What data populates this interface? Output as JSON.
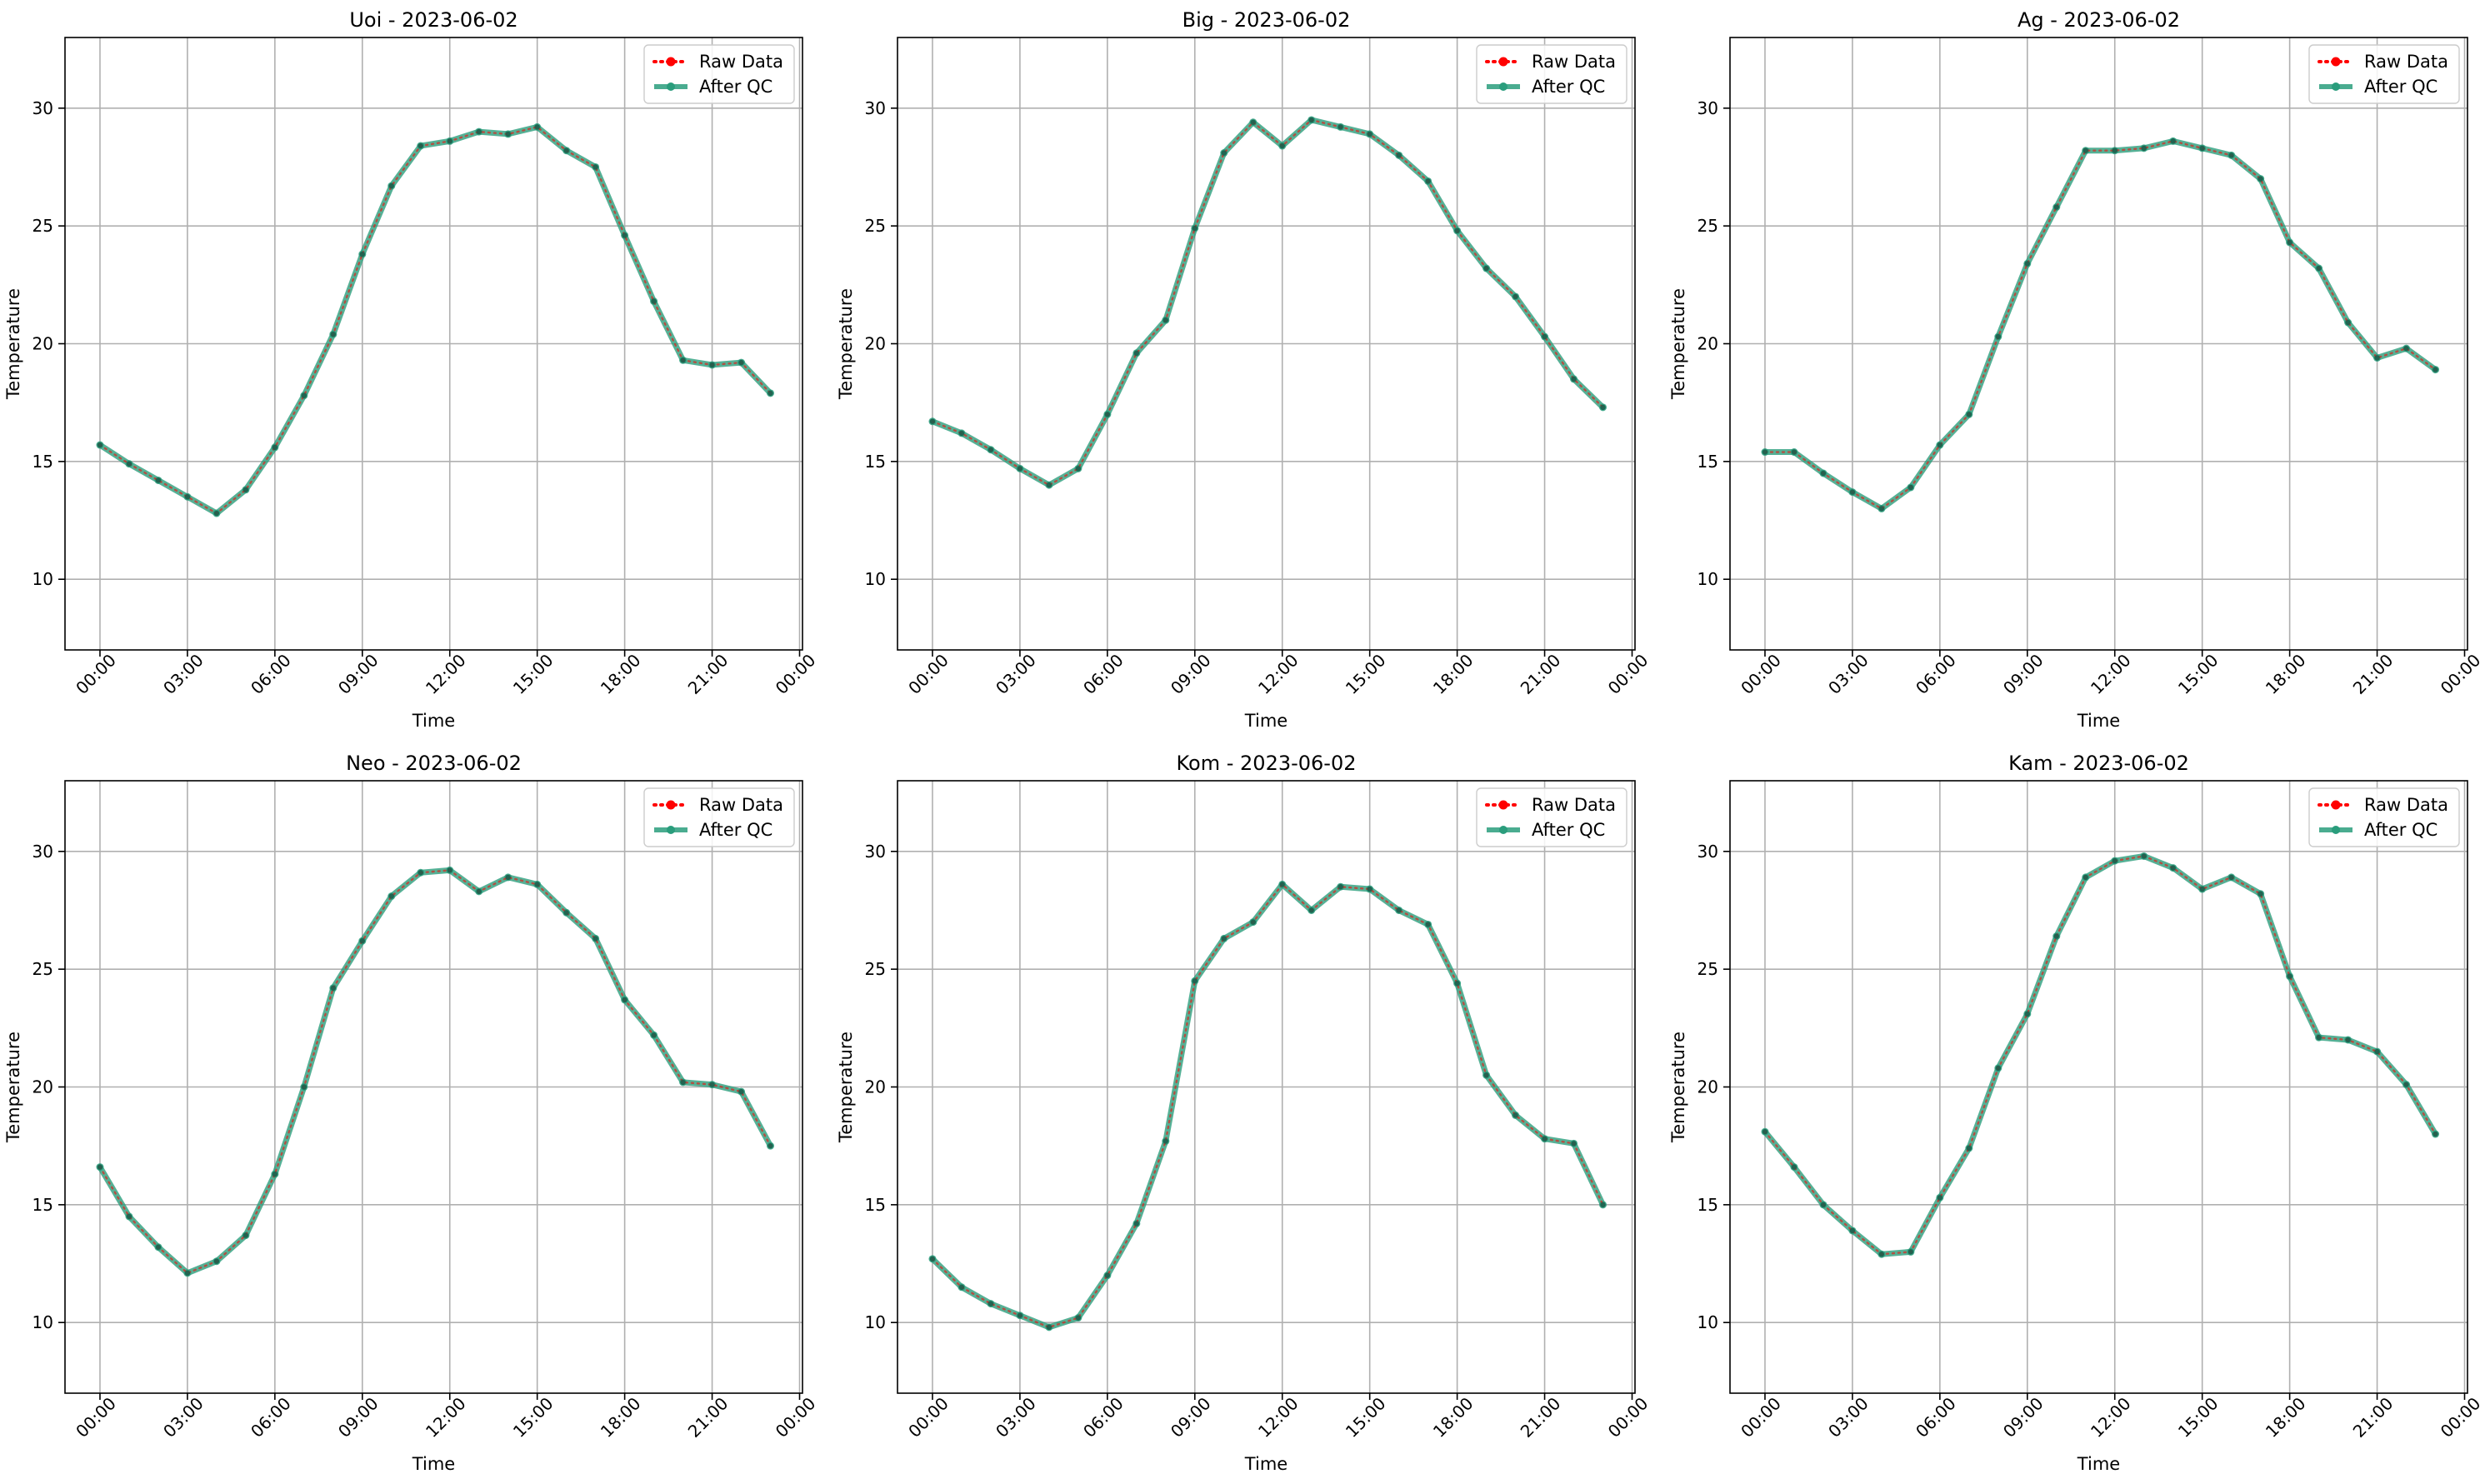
{
  "figure": {
    "background": "#ffffff"
  },
  "style": {
    "raw_color": "#ff0000",
    "qc_color": "#2a9d7c",
    "grid_color": "#b0b0b0"
  },
  "chart_data": [
    {
      "type": "line",
      "title": "Uoi - 2023-06-02",
      "xlabel": "Time",
      "ylabel": "Temperature",
      "x": [
        "00:00",
        "01:00",
        "02:00",
        "03:00",
        "04:00",
        "05:00",
        "06:00",
        "07:00",
        "08:00",
        "09:00",
        "10:00",
        "11:00",
        "12:00",
        "13:00",
        "14:00",
        "15:00",
        "16:00",
        "17:00",
        "18:00",
        "19:00",
        "20:00",
        "21:00",
        "22:00",
        "23:00"
      ],
      "xticks": [
        "00:00",
        "03:00",
        "06:00",
        "09:00",
        "12:00",
        "15:00",
        "18:00",
        "21:00",
        "00:00"
      ],
      "xlim_hours": [
        -1.2,
        24.1
      ],
      "yticks": [
        10,
        15,
        20,
        25,
        30
      ],
      "ylim": [
        7,
        33
      ],
      "grid": true,
      "legend": "top-right",
      "series": [
        {
          "name": "Raw Data",
          "values": [
            15.7,
            14.9,
            14.2,
            13.5,
            12.8,
            13.8,
            15.6,
            17.8,
            20.4,
            23.8,
            26.7,
            28.4,
            28.6,
            29.0,
            28.9,
            29.2,
            28.2,
            27.5,
            24.6,
            21.8,
            19.3,
            19.1,
            19.2,
            17.9
          ]
        },
        {
          "name": "After QC",
          "values": [
            15.7,
            14.9,
            14.2,
            13.5,
            12.8,
            13.8,
            15.6,
            17.8,
            20.4,
            23.8,
            26.7,
            28.4,
            28.6,
            29.0,
            28.9,
            29.2,
            28.2,
            27.5,
            24.6,
            21.8,
            19.3,
            19.1,
            19.2,
            17.9
          ]
        }
      ]
    },
    {
      "type": "line",
      "title": "Big - 2023-06-02",
      "xlabel": "Time",
      "ylabel": "Temperature",
      "x": [
        "00:00",
        "01:00",
        "02:00",
        "03:00",
        "04:00",
        "05:00",
        "06:00",
        "07:00",
        "08:00",
        "09:00",
        "10:00",
        "11:00",
        "12:00",
        "13:00",
        "14:00",
        "15:00",
        "16:00",
        "17:00",
        "18:00",
        "19:00",
        "20:00",
        "21:00",
        "22:00",
        "23:00"
      ],
      "xticks": [
        "00:00",
        "03:00",
        "06:00",
        "09:00",
        "12:00",
        "15:00",
        "18:00",
        "21:00",
        "00:00"
      ],
      "xlim_hours": [
        -1.2,
        24.1
      ],
      "yticks": [
        10,
        15,
        20,
        25,
        30
      ],
      "ylim": [
        7,
        33
      ],
      "grid": true,
      "legend": "top-right",
      "series": [
        {
          "name": "Raw Data",
          "values": [
            16.7,
            16.2,
            15.5,
            14.7,
            14.0,
            14.7,
            17.0,
            19.6,
            21.0,
            24.9,
            28.1,
            29.4,
            28.4,
            29.5,
            29.2,
            28.9,
            28.0,
            26.9,
            24.8,
            23.2,
            22.0,
            20.3,
            18.5,
            17.3
          ]
        },
        {
          "name": "After QC",
          "values": [
            16.7,
            16.2,
            15.5,
            14.7,
            14.0,
            14.7,
            17.0,
            19.6,
            21.0,
            24.9,
            28.1,
            29.4,
            28.4,
            29.5,
            29.2,
            28.9,
            28.0,
            26.9,
            24.8,
            23.2,
            22.0,
            20.3,
            18.5,
            17.3
          ]
        }
      ]
    },
    {
      "type": "line",
      "title": "Ag - 2023-06-02",
      "xlabel": "Time",
      "ylabel": "Temperature",
      "x": [
        "00:00",
        "01:00",
        "02:00",
        "03:00",
        "04:00",
        "05:00",
        "06:00",
        "07:00",
        "08:00",
        "09:00",
        "10:00",
        "11:00",
        "12:00",
        "13:00",
        "14:00",
        "15:00",
        "16:00",
        "17:00",
        "18:00",
        "19:00",
        "20:00",
        "21:00",
        "22:00",
        "23:00"
      ],
      "xticks": [
        "00:00",
        "03:00",
        "06:00",
        "09:00",
        "12:00",
        "15:00",
        "18:00",
        "21:00",
        "00:00"
      ],
      "xlim_hours": [
        -1.2,
        24.1
      ],
      "yticks": [
        10,
        15,
        20,
        25,
        30
      ],
      "ylim": [
        7,
        33
      ],
      "grid": true,
      "legend": "top-right",
      "series": [
        {
          "name": "Raw Data",
          "values": [
            15.4,
            15.4,
            14.5,
            13.7,
            13.0,
            13.9,
            15.7,
            17.0,
            20.3,
            23.4,
            25.8,
            28.2,
            28.2,
            28.3,
            28.6,
            28.3,
            28.0,
            27.0,
            24.3,
            23.2,
            20.9,
            19.4,
            19.8,
            18.9
          ]
        },
        {
          "name": "After QC",
          "values": [
            15.4,
            15.4,
            14.5,
            13.7,
            13.0,
            13.9,
            15.7,
            17.0,
            20.3,
            23.4,
            25.8,
            28.2,
            28.2,
            28.3,
            28.6,
            28.3,
            28.0,
            27.0,
            24.3,
            23.2,
            20.9,
            19.4,
            19.8,
            18.9
          ]
        }
      ]
    },
    {
      "type": "line",
      "title": "Neo - 2023-06-02",
      "xlabel": "Time",
      "ylabel": "Temperature",
      "x": [
        "00:00",
        "01:00",
        "02:00",
        "03:00",
        "04:00",
        "05:00",
        "06:00",
        "07:00",
        "08:00",
        "09:00",
        "10:00",
        "11:00",
        "12:00",
        "13:00",
        "14:00",
        "15:00",
        "16:00",
        "17:00",
        "18:00",
        "19:00",
        "20:00",
        "21:00",
        "22:00",
        "23:00"
      ],
      "xticks": [
        "00:00",
        "03:00",
        "06:00",
        "09:00",
        "12:00",
        "15:00",
        "18:00",
        "21:00",
        "00:00"
      ],
      "xlim_hours": [
        -1.2,
        24.1
      ],
      "yticks": [
        10,
        15,
        20,
        25,
        30
      ],
      "ylim": [
        7,
        33
      ],
      "grid": true,
      "legend": "top-right",
      "series": [
        {
          "name": "Raw Data",
          "values": [
            16.6,
            14.5,
            13.2,
            12.1,
            12.6,
            13.7,
            16.3,
            20.0,
            24.2,
            26.2,
            28.1,
            29.1,
            29.2,
            28.3,
            28.9,
            28.6,
            27.4,
            26.3,
            23.7,
            22.2,
            20.2,
            20.1,
            19.8,
            17.5
          ]
        },
        {
          "name": "After QC",
          "values": [
            16.6,
            14.5,
            13.2,
            12.1,
            12.6,
            13.7,
            16.3,
            20.0,
            24.2,
            26.2,
            28.1,
            29.1,
            29.2,
            28.3,
            28.9,
            28.6,
            27.4,
            26.3,
            23.7,
            22.2,
            20.2,
            20.1,
            19.8,
            17.5
          ]
        }
      ]
    },
    {
      "type": "line",
      "title": "Kom - 2023-06-02",
      "xlabel": "Time",
      "ylabel": "Temperature",
      "x": [
        "00:00",
        "01:00",
        "02:00",
        "03:00",
        "04:00",
        "05:00",
        "06:00",
        "07:00",
        "08:00",
        "09:00",
        "10:00",
        "11:00",
        "12:00",
        "13:00",
        "14:00",
        "15:00",
        "16:00",
        "17:00",
        "18:00",
        "19:00",
        "20:00",
        "21:00",
        "22:00",
        "23:00"
      ],
      "xticks": [
        "00:00",
        "03:00",
        "06:00",
        "09:00",
        "12:00",
        "15:00",
        "18:00",
        "21:00",
        "00:00"
      ],
      "xlim_hours": [
        -1.2,
        24.1
      ],
      "yticks": [
        10,
        15,
        20,
        25,
        30
      ],
      "ylim": [
        7,
        33
      ],
      "grid": true,
      "legend": "top-right",
      "series": [
        {
          "name": "Raw Data",
          "values": [
            12.7,
            11.5,
            10.8,
            10.3,
            9.8,
            10.2,
            12.0,
            14.2,
            17.7,
            24.5,
            26.3,
            27.0,
            28.6,
            27.5,
            28.5,
            28.4,
            27.5,
            26.9,
            24.4,
            20.5,
            18.8,
            17.8,
            17.6,
            15.0
          ]
        },
        {
          "name": "After QC",
          "values": [
            12.7,
            11.5,
            10.8,
            10.3,
            9.8,
            10.2,
            12.0,
            14.2,
            17.7,
            24.5,
            26.3,
            27.0,
            28.6,
            27.5,
            28.5,
            28.4,
            27.5,
            26.9,
            24.4,
            20.5,
            18.8,
            17.8,
            17.6,
            15.0
          ]
        }
      ]
    },
    {
      "type": "line",
      "title": "Kam - 2023-06-02",
      "xlabel": "Time",
      "ylabel": "Temperature",
      "x": [
        "00:00",
        "01:00",
        "02:00",
        "03:00",
        "04:00",
        "05:00",
        "06:00",
        "07:00",
        "08:00",
        "09:00",
        "10:00",
        "11:00",
        "12:00",
        "13:00",
        "14:00",
        "15:00",
        "16:00",
        "17:00",
        "18:00",
        "19:00",
        "20:00",
        "21:00",
        "22:00",
        "23:00"
      ],
      "xticks": [
        "00:00",
        "03:00",
        "06:00",
        "09:00",
        "12:00",
        "15:00",
        "18:00",
        "21:00",
        "00:00"
      ],
      "xlim_hours": [
        -1.2,
        24.1
      ],
      "yticks": [
        10,
        15,
        20,
        25,
        30
      ],
      "ylim": [
        7,
        33
      ],
      "grid": true,
      "legend": "top-right",
      "series": [
        {
          "name": "Raw Data",
          "values": [
            18.1,
            16.6,
            15.0,
            13.9,
            12.9,
            13.0,
            15.3,
            17.4,
            20.8,
            23.1,
            26.4,
            28.9,
            29.6,
            29.8,
            29.3,
            28.4,
            28.9,
            28.2,
            24.7,
            22.1,
            22.0,
            21.5,
            20.1,
            18.0
          ]
        },
        {
          "name": "After QC",
          "values": [
            18.1,
            16.6,
            15.0,
            13.9,
            12.9,
            13.0,
            15.3,
            17.4,
            20.8,
            23.1,
            26.4,
            28.9,
            29.6,
            29.8,
            29.3,
            28.4,
            28.9,
            28.2,
            24.7,
            22.1,
            22.0,
            21.5,
            20.1,
            18.0
          ]
        }
      ]
    }
  ]
}
